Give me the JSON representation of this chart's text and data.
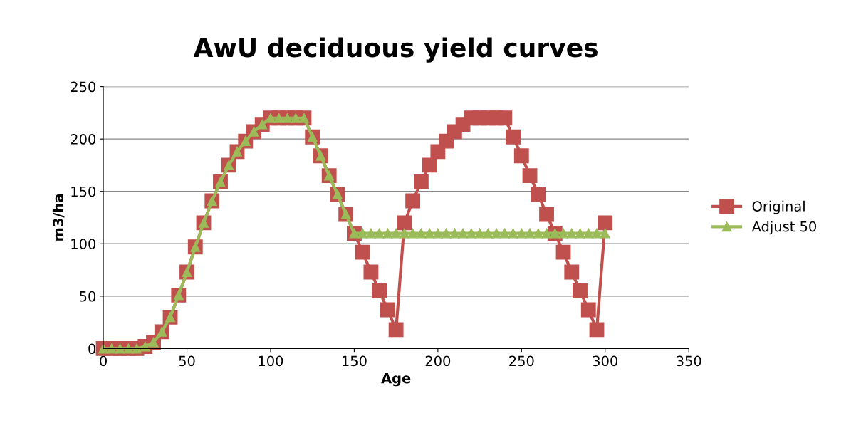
{
  "chart_data": {
    "type": "line",
    "title": "AwU deciduous yield curves",
    "xlabel": "Age",
    "ylabel": "m3/ha",
    "x": [
      0,
      5,
      10,
      15,
      20,
      25,
      30,
      35,
      40,
      45,
      50,
      55,
      60,
      65,
      70,
      75,
      80,
      85,
      90,
      95,
      100,
      105,
      110,
      115,
      120,
      125,
      130,
      135,
      140,
      145,
      150,
      155,
      160,
      165,
      170,
      175,
      180,
      185,
      190,
      195,
      200,
      205,
      210,
      215,
      220,
      225,
      230,
      235,
      240,
      245,
      250,
      255,
      260,
      265,
      270,
      275,
      280,
      285,
      290,
      295,
      300
    ],
    "series": [
      {
        "name": "Original",
        "color": "#c0504d",
        "marker": "square",
        "values": [
          0,
          0,
          0,
          0,
          0,
          2,
          6,
          16,
          30,
          51,
          73,
          97,
          120,
          141,
          159,
          175,
          188,
          198,
          207,
          214,
          220,
          220,
          220,
          220,
          220,
          202,
          184,
          165,
          147,
          128,
          110,
          92,
          73,
          55,
          37,
          18,
          120,
          141,
          159,
          175,
          188,
          198,
          207,
          214,
          220,
          220,
          220,
          220,
          220,
          202,
          184,
          165,
          147,
          128,
          110,
          92,
          73,
          55,
          37,
          18,
          120
        ]
      },
      {
        "name": "Adjust 50",
        "color": "#9bbb59",
        "marker": "triangle",
        "values": [
          0,
          0,
          0,
          0,
          0,
          2,
          6,
          16,
          30,
          51,
          73,
          97,
          120,
          141,
          159,
          175,
          188,
          198,
          207,
          214,
          220,
          220,
          220,
          220,
          220,
          202,
          184,
          165,
          147,
          128,
          110,
          110,
          110,
          110,
          110,
          110,
          110,
          110,
          110,
          110,
          110,
          110,
          110,
          110,
          110,
          110,
          110,
          110,
          110,
          110,
          110,
          110,
          110,
          110,
          110,
          110,
          110,
          110,
          110,
          110,
          110
        ]
      }
    ],
    "xlim": [
      0,
      350
    ],
    "xticks": [
      0,
      50,
      100,
      150,
      200,
      250,
      300,
      350
    ],
    "ylim": [
      0,
      250
    ],
    "yticks": [
      0,
      50,
      100,
      150,
      200,
      250
    ],
    "grid": "y",
    "legend": "right",
    "line_style": "solid"
  }
}
